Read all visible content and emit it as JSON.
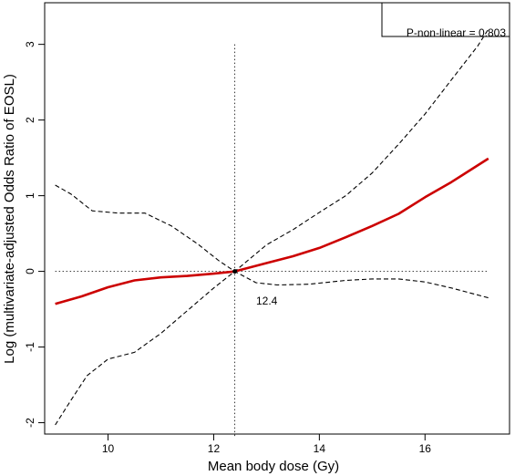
{
  "chart_data": {
    "type": "line",
    "title": "",
    "xlabel": "Mean body dose (Gy)",
    "ylabel": "Log (multivariate-adjusted Odds Ratio of EOSL)",
    "xlim": [
      8.8,
      17.6
    ],
    "ylim": [
      -2.15,
      3.55
    ],
    "x_ticks": [
      10,
      12,
      14,
      16
    ],
    "y_ticks": [
      -2,
      -1,
      0,
      1,
      2,
      3
    ],
    "grid": false,
    "legend": "none",
    "annotation": "P-non-linear = 0.803",
    "knot": {
      "x": 12.4,
      "y": 0,
      "label": "12.4"
    },
    "reference_lines": {
      "vertical_x": 12.4,
      "horizontal_y": 0
    },
    "series": [
      {
        "style": "solid",
        "color": "#cc0000",
        "x": [
          9.0,
          9.5,
          10.0,
          10.5,
          11.0,
          11.5,
          12.0,
          12.4,
          13.0,
          13.5,
          14.0,
          14.5,
          15.0,
          15.5,
          16.0,
          16.5,
          17.2
        ],
        "y": [
          -0.43,
          -0.33,
          -0.21,
          -0.12,
          -0.08,
          -0.06,
          -0.03,
          0.0,
          0.11,
          0.2,
          0.31,
          0.45,
          0.6,
          0.76,
          0.98,
          1.18,
          1.49
        ]
      },
      {
        "style": "dashed",
        "color": "#000000",
        "x": [
          9.0,
          9.3,
          9.7,
          10.2,
          10.7,
          11.2,
          11.7,
          12.1,
          12.4,
          13.0,
          13.5,
          14.0,
          14.5,
          15.0,
          15.5,
          16.0,
          16.5,
          17.0,
          17.2
        ],
        "y": [
          1.14,
          1.02,
          0.8,
          0.77,
          0.77,
          0.6,
          0.36,
          0.14,
          0.0,
          0.35,
          0.55,
          0.78,
          1.0,
          1.3,
          1.68,
          2.08,
          2.53,
          2.98,
          3.2
        ]
      },
      {
        "style": "dashed",
        "color": "#000000",
        "x": [
          9.0,
          9.3,
          9.6,
          10.0,
          10.5,
          11.0,
          11.5,
          12.0,
          12.4,
          12.8,
          13.2,
          13.8,
          14.5,
          15.0,
          15.5,
          16.0,
          16.5,
          17.2
        ],
        "y": [
          -2.03,
          -1.7,
          -1.38,
          -1.16,
          -1.07,
          -0.82,
          -0.52,
          -0.22,
          0.0,
          -0.15,
          -0.18,
          -0.17,
          -0.12,
          -0.1,
          -0.1,
          -0.14,
          -0.22,
          -0.35
        ]
      }
    ]
  }
}
